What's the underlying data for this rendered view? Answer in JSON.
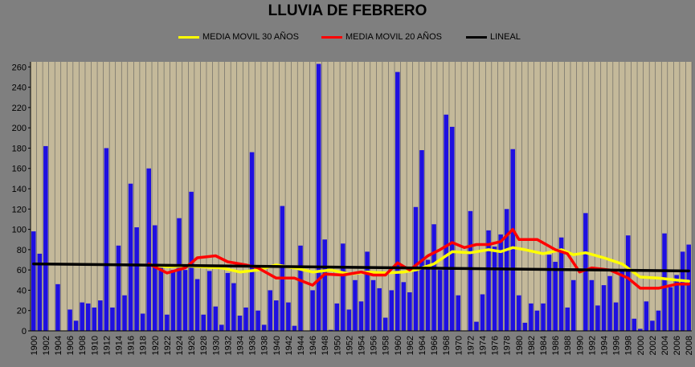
{
  "chart_data": {
    "type": "bar",
    "title": "LLUVIA DE FEBRERO",
    "ylim": [
      0,
      265
    ],
    "yticks": [
      0,
      20,
      40,
      60,
      80,
      100,
      120,
      140,
      160,
      180,
      200,
      220,
      240,
      260
    ],
    "x_tick_labels": [
      "1900",
      "1902",
      "1904",
      "1906",
      "1908",
      "1910",
      "1912",
      "1914",
      "1916",
      "1918",
      "1920",
      "1922",
      "1924",
      "1926",
      "1928",
      "1930",
      "1932",
      "1934",
      "1936",
      "1938",
      "1940",
      "1942",
      "1944",
      "1946",
      "1948",
      "1950",
      "1952",
      "1954",
      "1956",
      "1958",
      "1960",
      "1962",
      "1964",
      "1966",
      "1968",
      "1970",
      "1972",
      "1974",
      "1976",
      "1978",
      "1980",
      "1982",
      "1984",
      "1986",
      "1988",
      "1990",
      "1992",
      "1994",
      "1996",
      "1998",
      "2000",
      "2002",
      "2004",
      "2006",
      "2008"
    ],
    "grid": "vertical",
    "legend_position": "top",
    "colors": {
      "plot_background": "#c4b99a",
      "bars": "#1f10e0",
      "gridlines": "#5f5f5f",
      "ma30": "#ffff00",
      "ma20": "#ff0000",
      "linear": "#000000"
    },
    "series": [
      {
        "name": "",
        "type": "bar",
        "x": [
          1900,
          1901,
          1902,
          1903,
          1904,
          1905,
          1906,
          1907,
          1908,
          1909,
          1910,
          1911,
          1912,
          1913,
          1914,
          1915,
          1916,
          1917,
          1918,
          1919,
          1920,
          1921,
          1922,
          1923,
          1924,
          1925,
          1926,
          1927,
          1928,
          1929,
          1930,
          1931,
          1932,
          1933,
          1934,
          1935,
          1936,
          1937,
          1938,
          1939,
          1940,
          1941,
          1942,
          1943,
          1944,
          1945,
          1946,
          1947,
          1948,
          1949,
          1950,
          1951,
          1952,
          1953,
          1954,
          1955,
          1956,
          1957,
          1958,
          1959,
          1960,
          1961,
          1962,
          1963,
          1964,
          1965,
          1966,
          1967,
          1968,
          1969,
          1970,
          1971,
          1972,
          1973,
          1974,
          1975,
          1976,
          1977,
          1978,
          1979,
          1980,
          1981,
          1982,
          1983,
          1984,
          1985,
          1986,
          1987,
          1988,
          1989,
          1990,
          1991,
          1992,
          1993,
          1994,
          1995,
          1996,
          1997,
          1998,
          1999,
          2000,
          2001,
          2002,
          2003,
          2004,
          2005,
          2006,
          2007,
          2008
        ],
        "values": [
          98,
          76,
          182,
          0,
          46,
          0,
          21,
          10,
          28,
          27,
          23,
          30,
          180,
          23,
          84,
          35,
          145,
          102,
          17,
          160,
          104,
          63,
          16,
          60,
          111,
          60,
          137,
          51,
          16,
          59,
          24,
          6,
          57,
          47,
          15,
          23,
          176,
          20,
          6,
          40,
          30,
          123,
          28,
          5,
          84,
          0,
          40,
          263,
          90,
          1,
          27,
          86,
          21,
          50,
          29,
          78,
          50,
          42,
          13,
          40,
          255,
          48,
          38,
          122,
          178,
          70,
          105,
          60,
          213,
          201,
          35,
          0,
          118,
          9,
          36,
          99,
          83,
          95,
          120,
          179,
          35,
          8,
          27,
          20,
          27,
          75,
          68,
          92,
          23,
          50,
          0,
          116,
          50,
          25,
          45,
          54,
          28,
          60,
          94,
          12,
          2,
          29,
          10,
          20,
          96,
          43,
          55,
          78,
          85
        ]
      },
      {
        "name": "MEDIA MOVIL 30 AÑOS",
        "type": "line",
        "x": [
          1919,
          1922,
          1925,
          1928,
          1931,
          1934,
          1937,
          1940,
          1943,
          1946,
          1949,
          1952,
          1955,
          1958,
          1961,
          1963,
          1966,
          1969,
          1972,
          1975,
          1977,
          1979,
          1981,
          1984,
          1987,
          1989,
          1991,
          1994,
          1997,
          2000,
          2003,
          2006,
          2008
        ],
        "values": [
          65,
          63,
          64,
          63,
          62,
          58,
          60,
          65,
          62,
          58,
          60,
          56,
          58,
          57,
          58,
          60,
          66,
          78,
          77,
          80,
          78,
          82,
          80,
          76,
          80,
          75,
          77,
          72,
          66,
          53,
          52,
          50,
          49
        ]
      },
      {
        "name": "MEDIA MOVIL 20 AÑOS",
        "type": "line",
        "x": [
          1919,
          1922,
          1925,
          1927,
          1930,
          1932,
          1935,
          1937,
          1940,
          1943,
          1946,
          1948,
          1951,
          1954,
          1956,
          1958,
          1960,
          1962,
          1965,
          1967,
          1969,
          1971,
          1973,
          1975,
          1977,
          1979,
          1980,
          1983,
          1986,
          1988,
          1990,
          1992,
          1995,
          1998,
          2000,
          2003,
          2006,
          2008
        ],
        "values": [
          66,
          57,
          62,
          72,
          74,
          68,
          65,
          62,
          52,
          52,
          45,
          56,
          55,
          58,
          55,
          55,
          67,
          60,
          74,
          80,
          87,
          82,
          85,
          85,
          88,
          100,
          90,
          90,
          80,
          76,
          58,
          62,
          60,
          52,
          42,
          42,
          46,
          46
        ]
      },
      {
        "name": "LINEAL",
        "type": "line",
        "x": [
          1900,
          2008
        ],
        "values": [
          66,
          59
        ]
      }
    ]
  }
}
